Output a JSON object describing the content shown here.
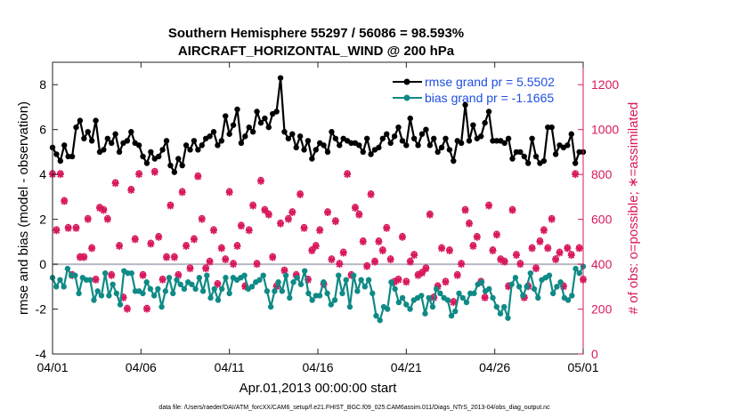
{
  "chart_data": {
    "type": "line",
    "title_lines": [
      "Southern Hemisphere 55297 / 56086 = 98.593%",
      "AIRCRAFT_HORIZONTAL_WIND @ 200 hPa"
    ],
    "xlabel": "Apr.01,2013 00:00:00 start",
    "ylabel_left": "rmse and bias (model - observation)",
    "ylabel_right": "# of obs: o=possible; ∗=assimilated",
    "footnote": "data file: /Users/raeder/DAI/ATM_forcXX/CAM6_setup/f.e21.FHIST_BGC.f09_025.CAM6assim.011/Diags_NTrS_2013-04/obs_diag_output.nc",
    "x_ticks": [
      "04/01",
      "04/06",
      "04/11",
      "04/16",
      "04/21",
      "04/26",
      "05/01"
    ],
    "x_range_days": [
      0,
      30
    ],
    "y_left_ticks": [
      "-4",
      "-2",
      "0",
      "2",
      "4",
      "6",
      "8"
    ],
    "y_left_range": [
      -4,
      9
    ],
    "y_right_ticks": [
      "0",
      "200",
      "400",
      "600",
      "800",
      "1000",
      "1200"
    ],
    "y_right_range": [
      0,
      1300
    ],
    "colors": {
      "rmse": "#000000",
      "bias": "#0f8a86",
      "obs": "#d8195e",
      "legend_text": "#1f4fe0",
      "zero_line": "#b8b8c6",
      "right_axis": "#d8195e"
    },
    "series": [
      {
        "name": "rmse grand pr = 5.5502",
        "values": [
          5.2,
          4.9,
          4.6,
          5.3,
          4.8,
          4.8,
          6.1,
          6.4,
          5.6,
          5.9,
          5.5,
          6.4,
          5.0,
          5.1,
          5.6,
          5.4,
          5.8,
          5.0,
          5.4,
          5.5,
          5.9,
          5.4,
          5.3,
          4.8,
          4.5,
          5.0,
          4.7,
          4.8,
          5.1,
          5.5,
          4.4,
          4.1,
          4.7,
          4.4,
          5.3,
          5.1,
          5.5,
          5.1,
          5.3,
          5.6,
          5.7,
          5.9,
          5.3,
          5.5,
          6.6,
          5.8,
          6.2,
          6.9,
          5.4,
          5.7,
          6.1,
          5.9,
          6.8,
          6.3,
          6.5,
          6.1,
          6.7,
          6.8,
          8.3,
          5.9,
          5.6,
          5.8,
          5.2,
          5.7,
          5.1,
          5.5,
          4.7,
          5.1,
          5.4,
          5.3,
          5.0,
          5.9,
          5.6,
          5.3,
          5.6,
          5.5,
          5.4,
          5.4,
          5.3,
          5.0,
          5.6,
          4.9,
          5.1,
          5.2,
          5.6,
          5.8,
          5.4,
          5.7,
          6.1,
          5.5,
          5.3,
          6.5,
          5.6,
          5.3,
          5.8,
          6.0,
          5.3,
          5.6,
          5.0,
          5.2,
          5.6,
          5.1,
          4.6,
          5.5,
          5.4,
          7.1,
          5.5,
          6.2,
          5.6,
          5.7,
          6.3,
          6.8,
          5.5,
          5.5,
          5.5,
          5.4,
          5.6,
          4.7,
          5.0,
          5.0,
          4.8,
          4.5,
          5.6,
          4.8,
          4.5,
          4.6,
          6.1,
          6.1,
          4.9,
          5.3,
          5.2,
          5.3,
          5.8,
          4.5,
          5.0,
          5.0
        ]
      },
      {
        "name": "bias grand pr = -1.1665",
        "values": [
          -0.6,
          -1.0,
          -0.7,
          -1.0,
          -0.2,
          -0.5,
          -0.5,
          -1.3,
          -0.6,
          -0.7,
          -0.7,
          -1.6,
          -1.2,
          -1.4,
          -0.4,
          -1.4,
          -0.9,
          -1.3,
          -1.8,
          -0.3,
          -0.4,
          -0.4,
          -1.2,
          -1.2,
          -1.3,
          -0.8,
          -1.1,
          -1.4,
          -1.1,
          -1.9,
          -1.2,
          -0.6,
          -1.3,
          -0.7,
          -0.9,
          -1.1,
          -0.8,
          -0.9,
          -1.1,
          -0.6,
          -1.2,
          -0.5,
          -1.5,
          -1.1,
          -1.6,
          -1.1,
          -0.6,
          -1.3,
          -0.6,
          -0.7,
          -0.6,
          -0.5,
          -1.1,
          -1.0,
          -0.8,
          -0.7,
          -0.5,
          -1.2,
          -1.9,
          -1.2,
          -0.8,
          -1.2,
          -0.5,
          -1.5,
          -0.8,
          -0.6,
          -0.9,
          -0.3,
          -1.3,
          -1.6,
          -1.4,
          -1.4,
          -0.8,
          -1.3,
          -1.8,
          -1.6,
          -0.5,
          -1.3,
          -0.7,
          -1.9,
          -0.5,
          -1.2,
          -0.7,
          -1.0,
          -0.7,
          -1.3,
          -2.3,
          -2.5,
          -1.9,
          -2.0,
          -0.8,
          -1.1,
          -1.7,
          -1.5,
          -1.8,
          -2.0,
          -1.6,
          -1.5,
          -1.4,
          -2.2,
          -1.5,
          -1.9,
          -1.1,
          -1.3,
          -1.5,
          -1.6,
          -2.3,
          -2.1,
          -1.3,
          -1.5,
          -1.7,
          -1.3,
          -1.3,
          -0.9,
          -0.8,
          -1.2,
          -1.1,
          -1.5,
          -1.9,
          -2.2,
          -1.9,
          -2.4,
          -0.9,
          -0.6,
          -1.0,
          -1.4,
          -1.0,
          -0.4,
          -1.1,
          -1.5,
          -0.7,
          -0.6,
          -0.5,
          -1.3,
          -1.0,
          -0.8,
          -1.5,
          -1.6,
          -1.4,
          -0.2,
          -0.4,
          -0.1
        ]
      },
      {
        "name": "obs_assimilated",
        "values": [
          800,
          550,
          800,
          680,
          560,
          350,
          560,
          430,
          430,
          600,
          470,
          330,
          650,
          640,
          600,
          350,
          760,
          480,
          250,
          200,
          730,
          510,
          800,
          350,
          200,
          490,
          810,
          520,
          330,
          430,
          660,
          430,
          350,
          720,
          480,
          380,
          510,
          790,
          600,
          380,
          410,
          550,
          310,
          470,
          420,
          720,
          400,
          480,
          570,
          300,
          550,
          660,
          400,
          770,
          640,
          620,
          430,
          300,
          580,
          370,
          600,
          630,
          350,
          710,
          560,
          330,
          460,
          480,
          550,
          310,
          630,
          420,
          590,
          400,
          450,
          800,
          350,
          650,
          620,
          500,
          390,
          710,
          410,
          500,
          460,
          560,
          420,
          320,
          330,
          520,
          320,
          410,
          440,
          350,
          360,
          380,
          620,
          250,
          300,
          470,
          320,
          460,
          230,
          350,
          400,
          640,
          580,
          480,
          520,
          320,
          250,
          660,
          460,
          530,
          420,
          410,
          300,
          640,
          440,
          400,
          250,
          300,
          470,
          380,
          500,
          550,
          470,
          600,
          420,
          450,
          300,
          470,
          440,
          800,
          470,
          330
        ]
      },
      {
        "name": "obs_possible",
        "values": [
          805,
          555,
          805,
          685,
          565,
          355,
          565,
          435,
          435,
          605,
          475,
          335,
          655,
          645,
          605,
          355,
          765,
          485,
          255,
          205,
          735,
          515,
          805,
          355,
          205,
          495,
          815,
          525,
          335,
          435,
          665,
          435,
          355,
          725,
          485,
          385,
          515,
          795,
          605,
          385,
          415,
          555,
          315,
          475,
          425,
          725,
          405,
          485,
          575,
          305,
          555,
          665,
          405,
          775,
          645,
          625,
          435,
          305,
          585,
          375,
          605,
          635,
          355,
          715,
          565,
          335,
          465,
          485,
          555,
          315,
          635,
          425,
          595,
          405,
          455,
          805,
          355,
          655,
          625,
          505,
          395,
          715,
          415,
          505,
          465,
          565,
          425,
          325,
          335,
          525,
          325,
          415,
          445,
          355,
          365,
          385,
          625,
          255,
          305,
          475,
          325,
          465,
          235,
          355,
          405,
          645,
          585,
          485,
          525,
          325,
          255,
          665,
          465,
          535,
          425,
          415,
          305,
          645,
          445,
          405,
          255,
          305,
          475,
          385,
          505,
          555,
          475,
          605,
          425,
          455,
          305,
          475,
          445,
          805,
          475,
          335
        ]
      }
    ]
  }
}
